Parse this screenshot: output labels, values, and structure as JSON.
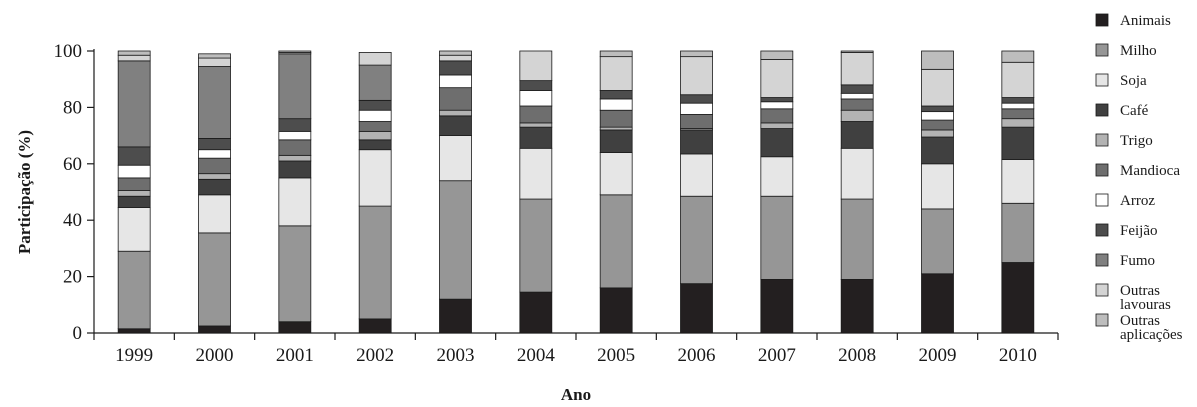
{
  "chart_data": {
    "type": "bar",
    "stacked": true,
    "percent_stacked": true,
    "title": "",
    "xlabel": "Ano",
    "ylabel": "Participação (%)",
    "ylim": [
      0,
      100
    ],
    "yticks": [
      0,
      20,
      40,
      60,
      80,
      100
    ],
    "grid": false,
    "legend_position": "right",
    "categories": [
      "1999",
      "2000",
      "2001",
      "2002",
      "2003",
      "2004",
      "2005",
      "2006",
      "2007",
      "2008",
      "2009",
      "2010"
    ],
    "series": [
      {
        "name": "Animais",
        "color": "#231f20",
        "values": [
          1.5,
          2.5,
          4,
          5,
          12,
          14.5,
          16,
          17.5,
          19,
          19,
          21,
          25
        ]
      },
      {
        "name": "Milho",
        "color": "#969696",
        "values": [
          27.5,
          33,
          34,
          40,
          42,
          33,
          33,
          31,
          29.5,
          28.5,
          23,
          21
        ]
      },
      {
        "name": "Soja",
        "color": "#e6e6e6",
        "values": [
          15.5,
          13.5,
          17,
          20,
          16,
          18,
          15,
          15,
          14,
          18,
          16,
          15.5
        ]
      },
      {
        "name": "Café",
        "color": "#404040",
        "values": [
          4,
          5.5,
          6,
          3.5,
          7,
          7.5,
          8,
          8.5,
          10,
          9.5,
          9.5,
          11.5
        ]
      },
      {
        "name": "Trigo",
        "color": "#b3b3b3",
        "values": [
          2,
          2,
          2,
          3,
          2,
          1.5,
          1,
          0.5,
          2,
          4,
          2.5,
          3
        ]
      },
      {
        "name": "Mandioca",
        "color": "#6e6e6e",
        "values": [
          4.5,
          5.5,
          5.5,
          3.5,
          8,
          6,
          6,
          5,
          5,
          4,
          3.5,
          3.5
        ]
      },
      {
        "name": "Arroz",
        "color": "#ffffff",
        "values": [
          4.5,
          3,
          3,
          4,
          4.5,
          5.5,
          4,
          4,
          2.5,
          2,
          3,
          2
        ]
      },
      {
        "name": "Feijão",
        "color": "#4d4d4d",
        "values": [
          6.5,
          4,
          4.5,
          3.5,
          5,
          3.5,
          3,
          3,
          1.5,
          3,
          2,
          2
        ]
      },
      {
        "name": "Fumo",
        "color": "#808080",
        "values": [
          30.5,
          25.5,
          23,
          12.5,
          0,
          0,
          0,
          0,
          0,
          0,
          0,
          0
        ]
      },
      {
        "name": "Outras lavouras",
        "color": "#d4d4d4",
        "values": [
          2,
          3,
          0.5,
          4.5,
          2,
          10.5,
          12,
          13.5,
          13.5,
          11.5,
          13,
          12.5
        ]
      },
      {
        "name": "Outras aplicações",
        "color": "#bdbdbd",
        "values": [
          1.5,
          1.5,
          0.5,
          0,
          1.5,
          0,
          2,
          2,
          3,
          0.5,
          6.5,
          4
        ]
      }
    ]
  }
}
